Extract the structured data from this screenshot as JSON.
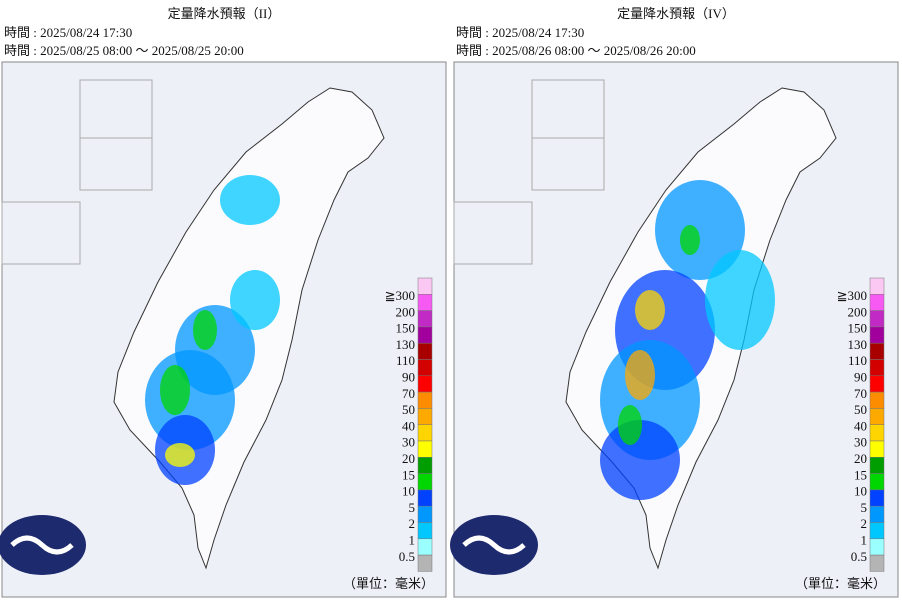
{
  "panels": [
    {
      "title": "定量降水預報（II）",
      "issue_time": "時間 : 2025/08/24 17:30",
      "valid_time": "時間 : 2025/08/25 08:00 ～ 2025/08/25 20:00"
    },
    {
      "title": "定量降水預報（IV）",
      "issue_time": "時間 : 2025/08/24 17:30",
      "valid_time": "時間 : 2025/08/26 08:00 ～ 2025/08/26 20:00"
    }
  ],
  "legend": {
    "labels": [
      "≧300",
      "200",
      "150",
      "130",
      "110",
      "90",
      "70",
      "50",
      "40",
      "30",
      "20",
      "15",
      "10",
      "5",
      "2",
      "1",
      "0.5"
    ],
    "colors": [
      "#fbc8f3",
      "#f75af2",
      "#c12ac4",
      "#a2009d",
      "#a80000",
      "#d30000",
      "#fe0000",
      "#fd8c00",
      "#fda900",
      "#fed500",
      "#fefe00",
      "#009e00",
      "#00d600",
      "#0042ff",
      "#0097ff",
      "#00c8ff",
      "#9afffe",
      "#b4b4b4"
    ]
  },
  "unit": "（單位：毫米）"
}
